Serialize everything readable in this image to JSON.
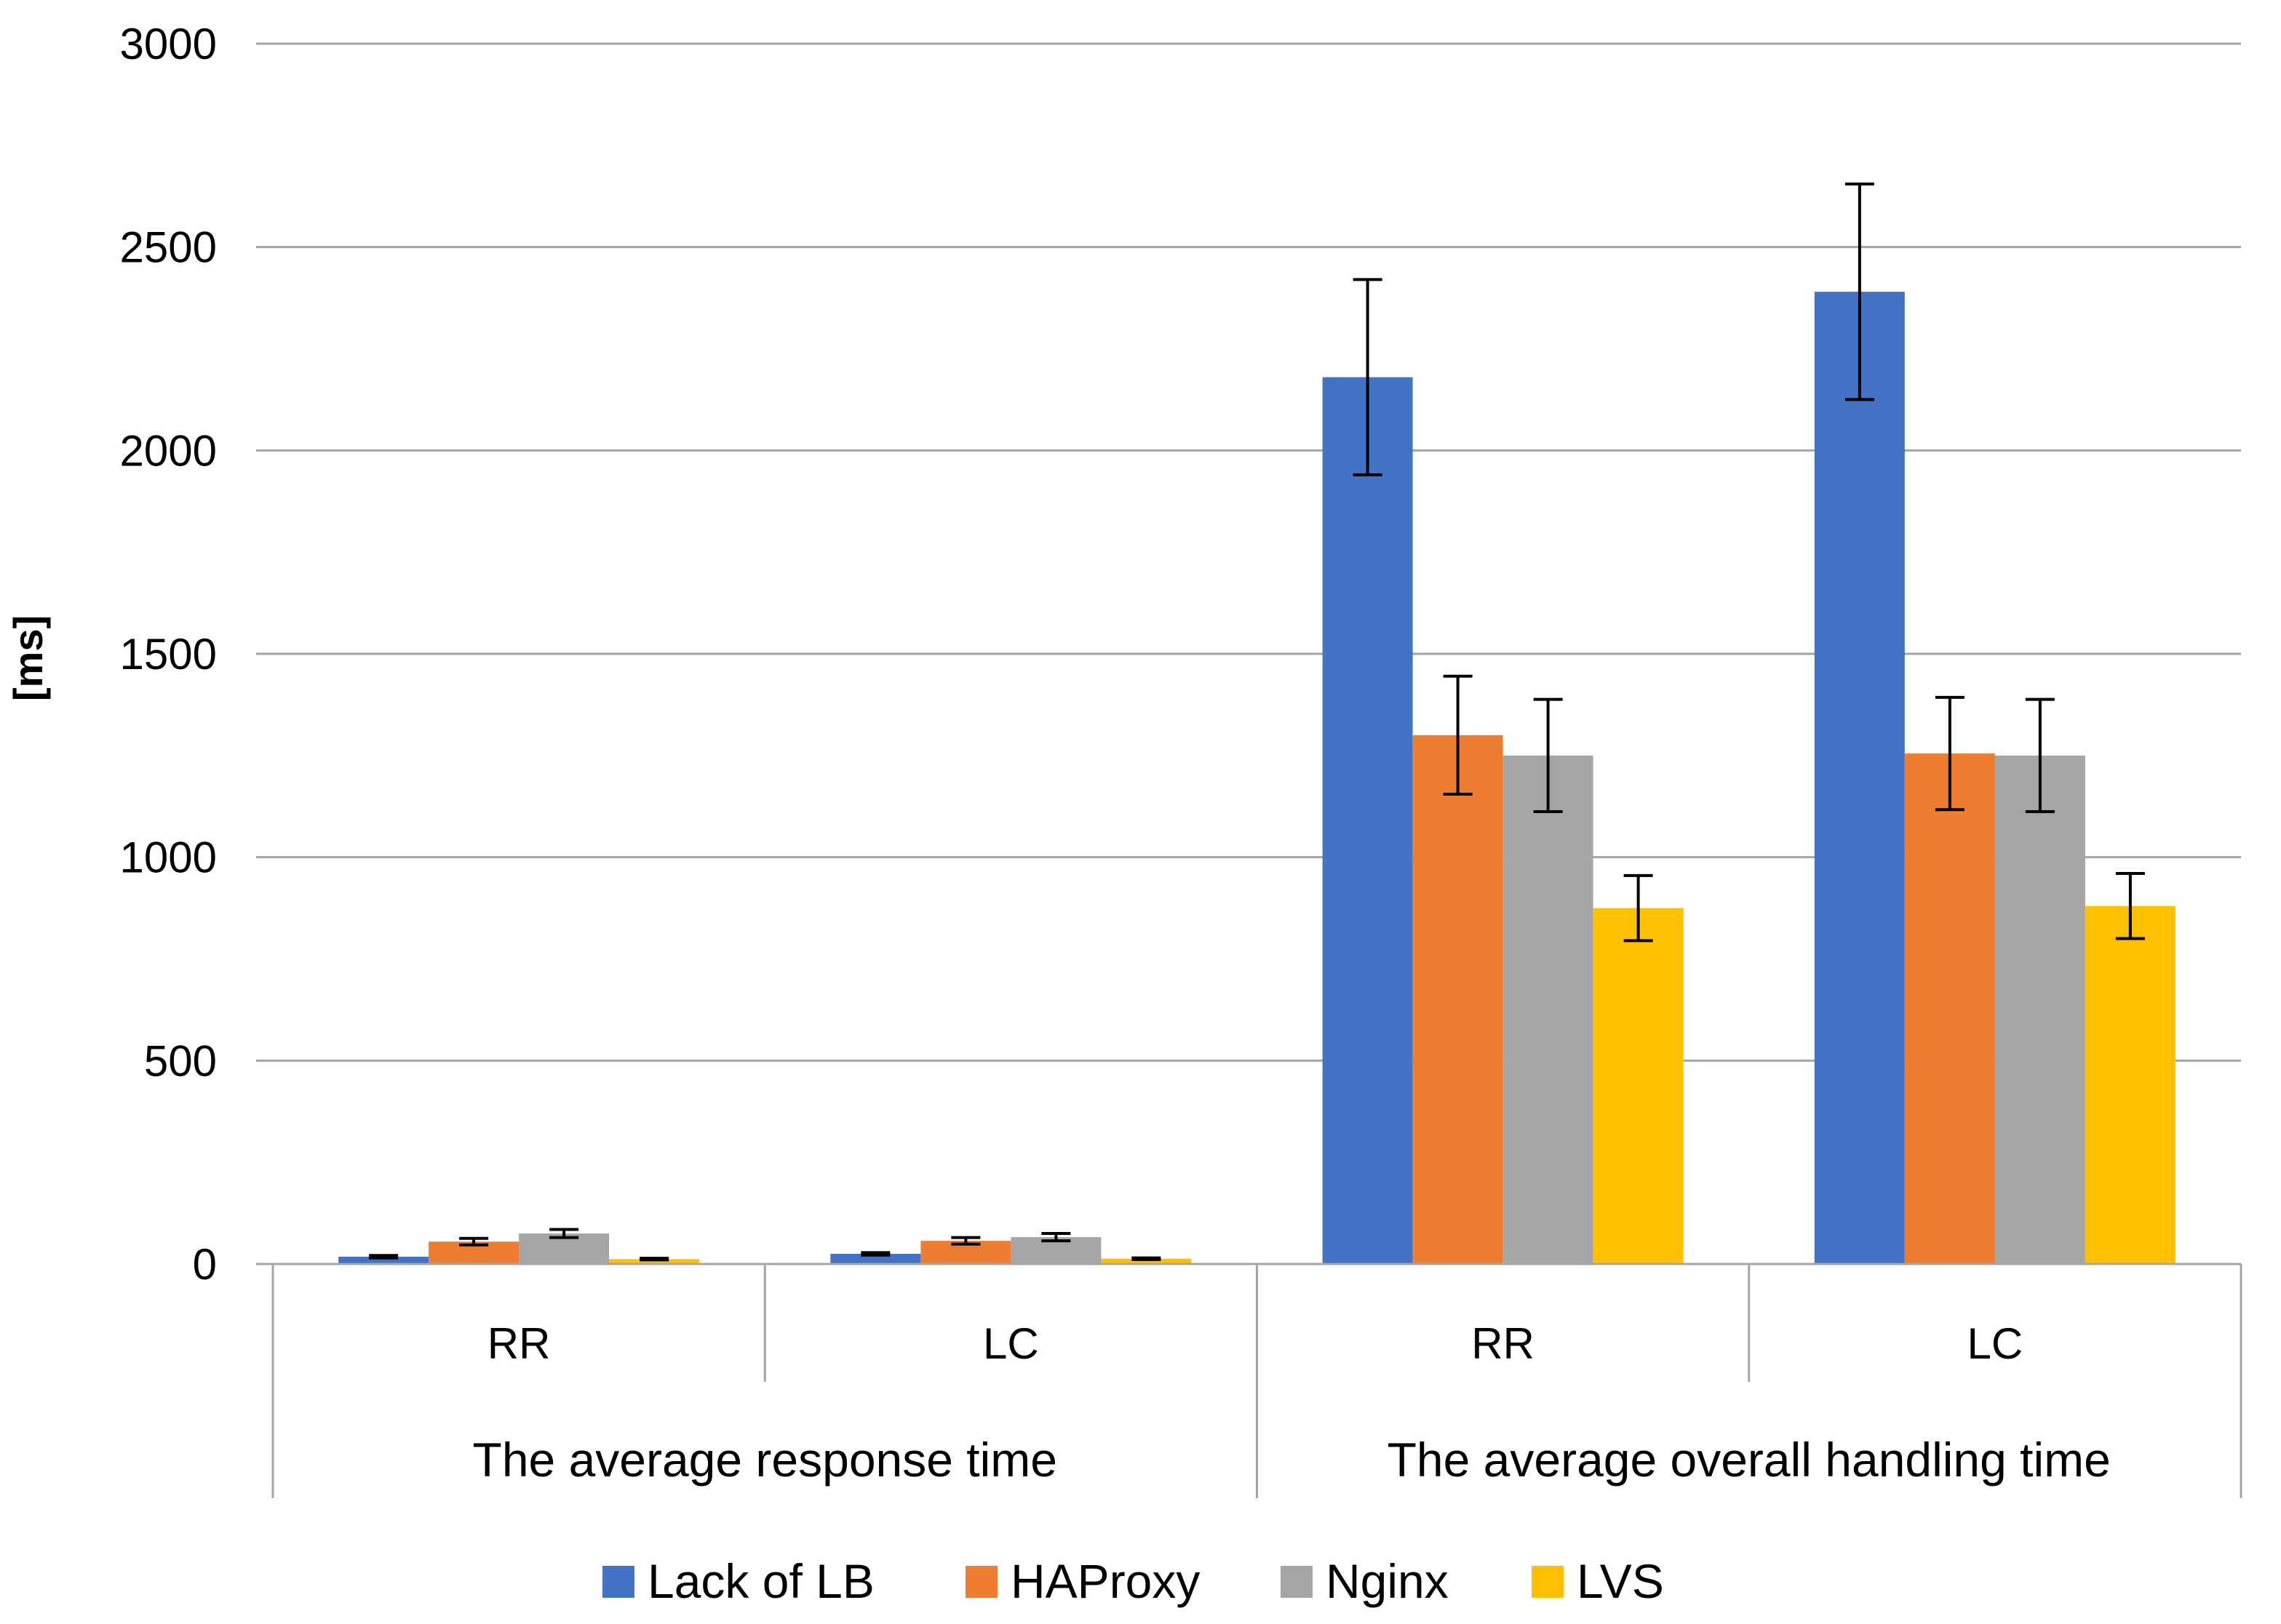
{
  "chart_data": {
    "type": "bar",
    "title": "",
    "xlabel": "",
    "ylabel": "[ms]",
    "ylim": [
      0,
      3000
    ],
    "yticks": [
      0,
      500,
      1000,
      1500,
      2000,
      2500,
      3000
    ],
    "grid": true,
    "legend_position": "bottom",
    "groups": [
      {
        "label": "The average response time",
        "categories": [
          "RR",
          "LC"
        ]
      },
      {
        "label": "The average overall handling time",
        "categories": [
          "RR",
          "LC"
        ]
      }
    ],
    "categories": [
      "RR",
      "LC",
      "RR",
      "LC"
    ],
    "series": [
      {
        "name": "Lack of LB",
        "color": "#4472C4",
        "values": [
          18,
          25,
          2180,
          2390
        ],
        "errors": [
          3,
          3,
          240,
          265
        ]
      },
      {
        "name": "HAProxy",
        "color": "#ED7D31",
        "values": [
          55,
          57,
          1300,
          1255
        ],
        "errors": [
          8,
          8,
          145,
          138
        ]
      },
      {
        "name": "Nginx",
        "color": "#A5A5A5",
        "values": [
          75,
          66,
          1250,
          1250
        ],
        "errors": [
          10,
          9,
          138,
          138
        ]
      },
      {
        "name": "LVS",
        "color": "#FFC000",
        "values": [
          12,
          13,
          875,
          880
        ],
        "errors": [
          2,
          2,
          80,
          80
        ]
      }
    ]
  }
}
